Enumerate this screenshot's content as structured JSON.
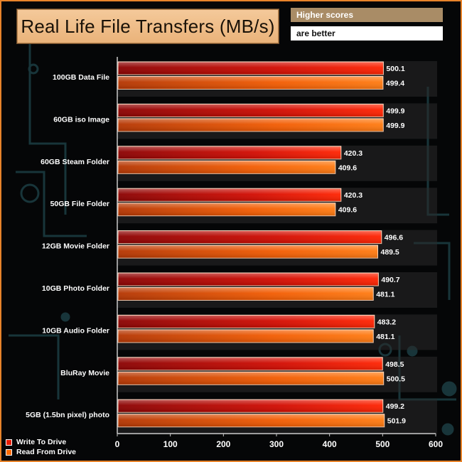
{
  "header": {
    "title": "Real Life File Transfers (MB/s)",
    "note_line1": "Higher scores",
    "note_line2": "are better"
  },
  "colors": {
    "write": "#e81c00",
    "read": "#ff6a00",
    "frame": "#e8832a",
    "circuit": "#1b3b40"
  },
  "chart_data": {
    "type": "bar",
    "orientation": "horizontal",
    "title": "Real Life File Transfers (MB/s)",
    "categories": [
      "100GB Data File",
      "60GB iso Image",
      "60GB Steam Folder",
      "50GB File Folder",
      "12GB Movie Folder",
      "10GB Photo Folder",
      "10GB Audio Folder",
      "BluRay Movie",
      "5GB (1.5bn pixel) photo"
    ],
    "series": [
      {
        "name": "Write To  Drive",
        "values": [
          500.1,
          499.9,
          420.3,
          420.3,
          496.6,
          490.7,
          483.2,
          498.5,
          499.2
        ]
      },
      {
        "name": "Read From  Drive",
        "values": [
          499.4,
          499.9,
          409.6,
          409.6,
          489.5,
          481.1,
          481.1,
          500.5,
          501.9
        ]
      }
    ],
    "xlim": [
      0,
      600
    ],
    "xticks": [
      0,
      100,
      200,
      300,
      400,
      500,
      600
    ],
    "xlabel": "",
    "ylabel": "",
    "grid": false,
    "legend": "bottom-left"
  }
}
